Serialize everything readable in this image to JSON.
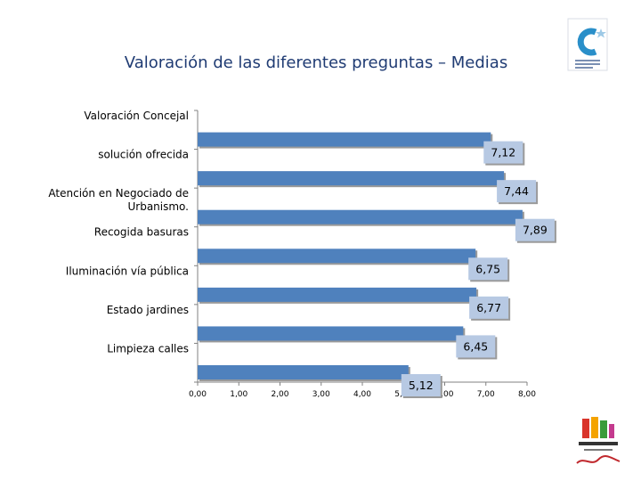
{
  "chart_data": {
    "type": "bar",
    "orientation": "horizontal",
    "title": "Valoración de las diferentes preguntas – Medias",
    "categories": [
      "Valoración Concejal",
      "solución ofrecida",
      "Atención en Negociado de Urbanismo.",
      "Recogida  basuras",
      "Iluminación  vía pública",
      "Estado  jardines",
      "Limpieza calles"
    ],
    "category_lines": [
      [
        "Valoración Concejal"
      ],
      [
        "solución ofrecida"
      ],
      [
        "Atención en Negociado de",
        "Urbanismo."
      ],
      [
        "Recogida  basuras"
      ],
      [
        "Iluminación  vía pública"
      ],
      [
        "Estado  jardines"
      ],
      [
        "Limpieza calles"
      ]
    ],
    "values": [
      7.12,
      7.44,
      7.89,
      6.75,
      6.77,
      6.45,
      5.12
    ],
    "value_labels": [
      "7,12",
      "7,44",
      "7,89",
      "6,75",
      "6,77",
      "6,45",
      "5,12"
    ],
    "xlim": [
      0,
      8
    ],
    "x_ticks": [
      "0,00",
      "1,00",
      "2,00",
      "3,00",
      "4,00",
      "5,00",
      "6,00",
      "7,00",
      "8,00"
    ],
    "bar_color": "#4f81bd",
    "label_box_color": "#b7c9e3",
    "grid": false
  }
}
